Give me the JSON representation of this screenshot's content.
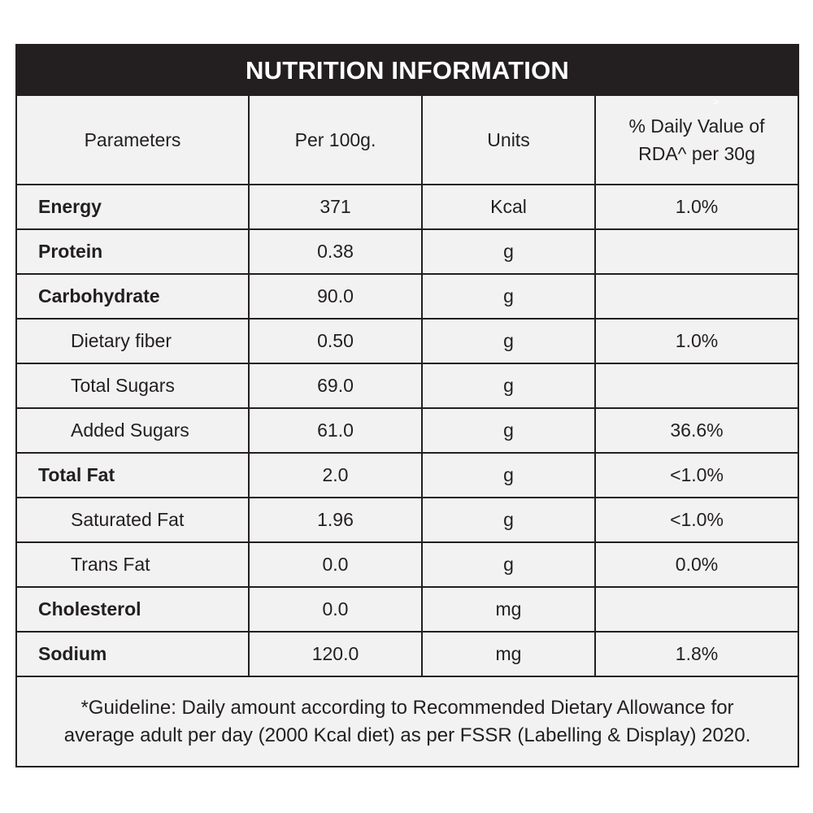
{
  "title": "NUTRITION INFORMATION",
  "headers": {
    "parameters": "Parameters",
    "per100": "Per 100g.",
    "units": "Units",
    "dv_line1": "% Daily Value of",
    "dv_line2": "RDA^ per 30g",
    "dv_mark": ">"
  },
  "rows": [
    {
      "name": "Energy",
      "value": "371",
      "unit": "Kcal",
      "dv": "1.0%",
      "bold": true
    },
    {
      "name": "Protein",
      "value": "0.38",
      "unit": "g",
      "dv": "",
      "bold": true
    },
    {
      "name": "Carbohydrate",
      "value": "90.0",
      "unit": "g",
      "dv": "",
      "bold": true
    },
    {
      "name": "Dietary fiber",
      "value": "0.50",
      "unit": "g",
      "dv": "1.0%",
      "bold": false
    },
    {
      "name": "Total Sugars",
      "value": "69.0",
      "unit": "g",
      "dv": "",
      "bold": false
    },
    {
      "name": "Added Sugars",
      "value": "61.0",
      "unit": "g",
      "dv": "36.6%",
      "bold": false
    },
    {
      "name": "Total Fat",
      "value": "2.0",
      "unit": "g",
      "dv": "<1.0%",
      "bold": true
    },
    {
      "name": "Saturated Fat",
      "value": "1.96",
      "unit": "g",
      "dv": "<1.0%",
      "bold": false
    },
    {
      "name": "Trans Fat",
      "value": "0.0",
      "unit": "g",
      "dv": "0.0%",
      "bold": false
    },
    {
      "name": "Cholesterol",
      "value": "0.0",
      "unit": "mg",
      "dv": "",
      "bold": true
    },
    {
      "name": "Sodium",
      "value": "120.0",
      "unit": "mg",
      "dv": "1.8%",
      "bold": true
    }
  ],
  "footnote": {
    "line1": "*Guideline: Daily amount according to Recommended Dietary Allowance for",
    "line2": "average adult per day (2000 Kcal diet) as per FSSR (Labelling & Display) 2020."
  },
  "colors": {
    "header_bg": "#231f20",
    "panel_bg": "#f2f2f2",
    "text": "#231f20"
  }
}
